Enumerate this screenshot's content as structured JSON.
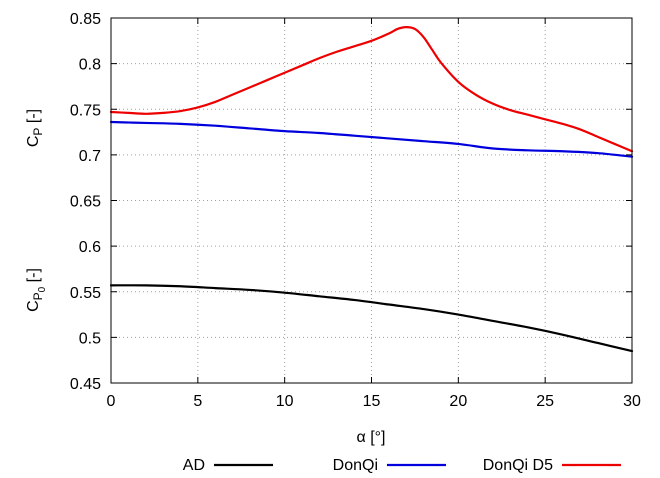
{
  "chart_data": {
    "type": "line",
    "xlabel": "α [°]",
    "ylabel_upper": {
      "base": "C",
      "sub": "P",
      "suffix": " [-]"
    },
    "ylabel_lower": {
      "base": "C",
      "sub": "P",
      "subsub": "0",
      "suffix": " [-]"
    },
    "xlim": [
      0,
      30
    ],
    "ylim": [
      0.45,
      0.85
    ],
    "xticks": [
      0,
      5,
      10,
      15,
      20,
      25,
      30
    ],
    "xtick_labels": [
      "0",
      "5",
      "10",
      "15",
      "20",
      "25",
      "30"
    ],
    "yticks": [
      0.45,
      0.5,
      0.55,
      0.6,
      0.65,
      0.7,
      0.75,
      0.8,
      0.85
    ],
    "ytick_labels": [
      "0.45",
      "0.5",
      "0.55",
      "0.6",
      "0.65",
      "0.7",
      "0.75",
      "0.8",
      "0.85"
    ],
    "grid": true,
    "legend_position": "bottom",
    "series": [
      {
        "name": "AD",
        "color": "#000000",
        "x": [
          0,
          2,
          4,
          6,
          8,
          10,
          12,
          14,
          16,
          18,
          20,
          22,
          24,
          26,
          28,
          30
        ],
        "y": [
          0.557,
          0.557,
          0.556,
          0.554,
          0.552,
          0.549,
          0.545,
          0.541,
          0.536,
          0.531,
          0.525,
          0.518,
          0.511,
          0.503,
          0.494,
          0.485
        ]
      },
      {
        "name": "DonQi",
        "color": "#0000dd",
        "x": [
          0,
          2,
          4,
          6,
          8,
          10,
          12,
          14,
          16,
          18,
          20,
          22,
          24,
          26,
          28,
          30
        ],
        "y": [
          0.736,
          0.735,
          0.734,
          0.732,
          0.729,
          0.726,
          0.724,
          0.721,
          0.718,
          0.715,
          0.712,
          0.707,
          0.705,
          0.704,
          0.702,
          0.698
        ]
      },
      {
        "name": "DonQi D5",
        "color": "#ee0000",
        "x": [
          0,
          1,
          2,
          3,
          4,
          5,
          6,
          7,
          8,
          9,
          10,
          11,
          12,
          13,
          14,
          15,
          16,
          16.5,
          17,
          17.5,
          18,
          18.5,
          19,
          20,
          21,
          22,
          23,
          24,
          25,
          26,
          27,
          28,
          29,
          30
        ],
        "y": [
          0.747,
          0.746,
          0.745,
          0.746,
          0.748,
          0.752,
          0.758,
          0.766,
          0.774,
          0.782,
          0.79,
          0.798,
          0.806,
          0.813,
          0.819,
          0.825,
          0.833,
          0.838,
          0.84,
          0.838,
          0.829,
          0.815,
          0.801,
          0.78,
          0.766,
          0.756,
          0.749,
          0.744,
          0.739,
          0.734,
          0.728,
          0.72,
          0.712,
          0.704
        ]
      }
    ]
  }
}
